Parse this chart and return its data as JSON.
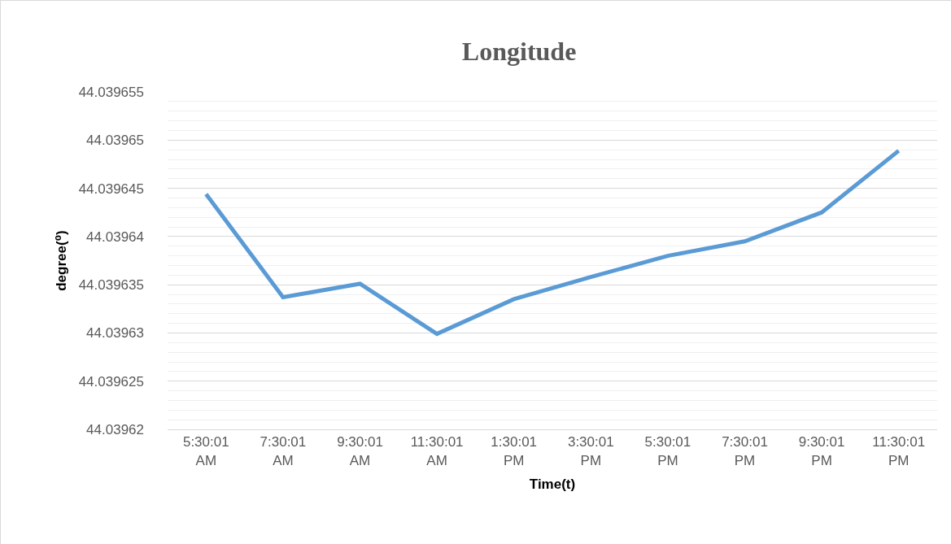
{
  "chart_data": {
    "type": "line",
    "title": "Longitude",
    "xlabel": "Time(t)",
    "ylabel": "degree(⁰)",
    "categories": [
      "5:30:01 AM",
      "7:30:01 AM",
      "9:30:01 AM",
      "11:30:01 AM",
      "1:30:01 PM",
      "3:30:01 PM",
      "5:30:01 PM",
      "7:30:01 PM",
      "9:30:01 PM",
      "11:30:01 PM"
    ],
    "series": [
      {
        "color": "#5b9bd5",
        "values": [
          44.0396444,
          44.0396337,
          44.0396351,
          44.0396299,
          44.0396335,
          44.0396358,
          44.039638,
          44.0396395,
          44.0396425,
          44.0396489
        ]
      }
    ],
    "ylim": [
      44.03962,
      44.039655
    ],
    "yticks": [
      44.03962,
      44.039625,
      44.03963,
      44.039635,
      44.03964,
      44.039645,
      44.03965,
      44.039655
    ],
    "grid": "y",
    "marker": "none",
    "line_style": "solid"
  }
}
